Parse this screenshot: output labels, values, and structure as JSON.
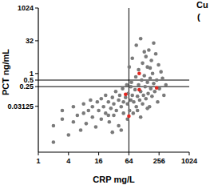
{
  "chart_data": {
    "type": "scatter",
    "title": "Cu",
    "subtitle": "(",
    "x_label": "CRP mg/L",
    "y_label": "PCT ng/mL",
    "log": true,
    "xlim": [
      1,
      1024
    ],
    "ylim": [
      0.000244140625,
      1024
    ],
    "xticks": [
      1,
      4,
      16,
      64,
      256,
      1024
    ],
    "yticks": [
      0.03125,
      0.25,
      0.5,
      1,
      32,
      1024
    ],
    "reference_lines": {
      "x": [
        64
      ],
      "y": [
        0.25,
        0.5
      ]
    },
    "x": [
      2,
      2,
      3,
      3,
      4,
      5,
      5,
      6,
      7,
      8,
      8,
      9,
      10,
      11,
      12,
      12,
      14,
      15,
      16,
      18,
      18,
      20,
      22,
      22,
      25,
      26,
      28,
      30,
      32,
      32,
      35,
      36,
      40,
      40,
      42,
      45,
      48,
      50,
      50,
      55,
      58,
      60,
      62,
      66,
      70,
      70,
      72,
      75,
      78,
      80,
      85,
      88,
      90,
      95,
      100,
      100,
      105,
      110,
      115,
      120,
      120,
      125,
      130,
      135,
      140,
      140,
      150,
      150,
      155,
      160,
      165,
      170,
      175,
      180,
      185,
      190,
      200,
      200,
      210,
      220,
      230,
      240,
      250,
      260,
      280,
      300,
      320,
      350,
      90,
      110,
      130,
      75,
      65,
      170,
      60,
      45,
      30,
      25,
      110,
      95,
      150,
      103,
      229,
      55,
      64,
      103
    ],
    "values": [
      0.004,
      0.0007,
      0.02,
      0.008,
      0.0015,
      0.03,
      0.006,
      0.012,
      0.0025,
      0.04,
      0.015,
      0.005,
      0.02,
      0.06,
      0.01,
      0.03,
      0.0035,
      0.05,
      0.02,
      0.008,
      0.07,
      0.03,
      0.015,
      0.1,
      0.05,
      0.006,
      0.025,
      0.08,
      0.04,
      0.012,
      0.15,
      0.02,
      0.06,
      0.004,
      0.1,
      0.03,
      0.2,
      0.05,
      0.015,
      0.08,
      0.3,
      0.04,
      0.12,
      0.02,
      0.06,
      0.25,
      0.4,
      0.1,
      0.015,
      0.05,
      0.18,
      0.7,
      0.03,
      0.09,
      0.3,
      1.5,
      0.06,
      0.15,
      0.5,
      3,
      0.04,
      0.1,
      0.8,
      0.25,
      6,
      0.07,
      0.4,
      2,
      0.12,
      12,
      0.03,
      0.6,
      0.2,
      4,
      0.09,
      1,
      0.35,
      25,
      0.15,
      8,
      0.5,
      0.05,
      2.5,
      0.2,
      1.2,
      0.6,
      0.1,
      0.3,
      20,
      40,
      10,
      5,
      2,
      1.8,
      0.008,
      0.0025,
      0.002,
      0.012,
      0.01,
      0.02,
      0.025,
      1,
      0.22,
      0.11,
      0.011,
      0.18
    ],
    "colors": [
      "#7a7a7a",
      "#7a7a7a",
      "#7a7a7a",
      "#7a7a7a",
      "#7a7a7a",
      "#7a7a7a",
      "#7a7a7a",
      "#7a7a7a",
      "#7a7a7a",
      "#7a7a7a",
      "#7a7a7a",
      "#7a7a7a",
      "#7a7a7a",
      "#7a7a7a",
      "#7a7a7a",
      "#7a7a7a",
      "#7a7a7a",
      "#7a7a7a",
      "#7a7a7a",
      "#7a7a7a",
      "#7a7a7a",
      "#7a7a7a",
      "#7a7a7a",
      "#7a7a7a",
      "#7a7a7a",
      "#7a7a7a",
      "#7a7a7a",
      "#7a7a7a",
      "#7a7a7a",
      "#7a7a7a",
      "#7a7a7a",
      "#7a7a7a",
      "#7a7a7a",
      "#7a7a7a",
      "#7a7a7a",
      "#7a7a7a",
      "#7a7a7a",
      "#7a7a7a",
      "#7a7a7a",
      "#7a7a7a",
      "#7a7a7a",
      "#7a7a7a",
      "#7a7a7a",
      "#7a7a7a",
      "#7a7a7a",
      "#7a7a7a",
      "#7a7a7a",
      "#7a7a7a",
      "#7a7a7a",
      "#7a7a7a",
      "#7a7a7a",
      "#7a7a7a",
      "#7a7a7a",
      "#7a7a7a",
      "#7a7a7a",
      "#7a7a7a",
      "#7a7a7a",
      "#7a7a7a",
      "#7a7a7a",
      "#7a7a7a",
      "#7a7a7a",
      "#7a7a7a",
      "#7a7a7a",
      "#7a7a7a",
      "#7a7a7a",
      "#7a7a7a",
      "#7a7a7a",
      "#7a7a7a",
      "#7a7a7a",
      "#7a7a7a",
      "#7a7a7a",
      "#7a7a7a",
      "#7a7a7a",
      "#7a7a7a",
      "#7a7a7a",
      "#7a7a7a",
      "#7a7a7a",
      "#7a7a7a",
      "#7a7a7a",
      "#7a7a7a",
      "#7a7a7a",
      "#7a7a7a",
      "#7a7a7a",
      "#7a7a7a",
      "#7a7a7a",
      "#7a7a7a",
      "#7a7a7a",
      "#7a7a7a",
      "#7a7a7a",
      "#7a7a7a",
      "#7a7a7a",
      "#7a7a7a",
      "#7a7a7a",
      "#7a7a7a",
      "#7a7a7a",
      "#7a7a7a",
      "#7a7a7a",
      "#7a7a7a",
      "#7a7a7a",
      "#7a7a7a",
      "#7a7a7a",
      "#e3261f",
      "#e3261f",
      "#e3261f",
      "#e3261f",
      "#e3261f"
    ]
  }
}
